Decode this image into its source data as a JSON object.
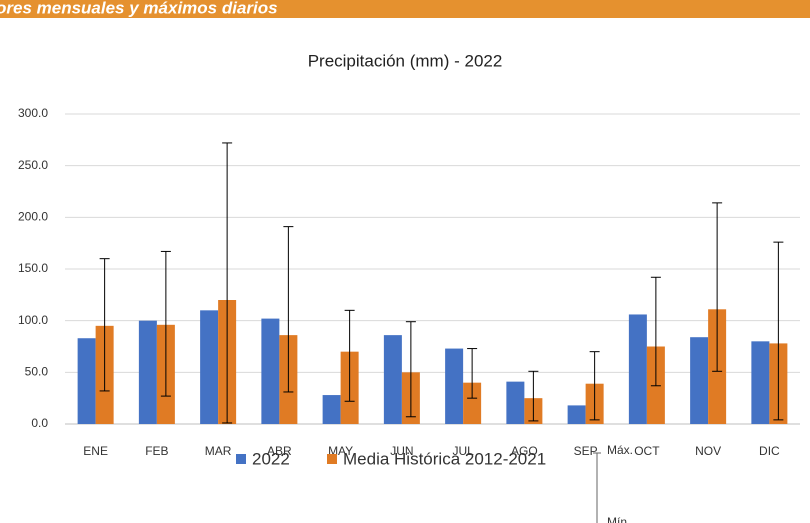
{
  "header": "ores mensuales y máximos diarios",
  "chart_data": {
    "type": "bar",
    "title": "Precipitación (mm) - 2022",
    "categories": [
      "ENE",
      "FEB",
      "MAR",
      "ABR",
      "MAY",
      "JUN",
      "JUL",
      "AGO",
      "SEP",
      "OCT",
      "NOV",
      "DIC"
    ],
    "series": [
      {
        "name": "2022",
        "color": "#4472c4",
        "values": [
          83,
          100,
          110,
          102,
          28,
          86,
          73,
          41,
          18,
          106,
          84,
          80
        ]
      },
      {
        "name": "Media Histórica 2012-2021",
        "color": "#e07b24",
        "values": [
          95,
          96,
          120,
          86,
          70,
          50,
          40,
          25,
          39,
          75,
          111,
          78
        ],
        "max": [
          160,
          167,
          272,
          191,
          110,
          99,
          73,
          51,
          70,
          142,
          214,
          176
        ],
        "min": [
          32,
          27,
          1,
          31,
          22,
          7,
          25,
          3,
          4,
          37,
          51,
          4
        ]
      }
    ],
    "error_legend": {
      "max": "Máx.",
      "min": "Mín."
    },
    "ylim": [
      0,
      300
    ],
    "yticks": [
      {
        "value": 0,
        "label": "0.0"
      },
      {
        "value": 50,
        "label": "50.0"
      },
      {
        "value": 100,
        "label": "100.0"
      },
      {
        "value": 150,
        "label": "150.0"
      },
      {
        "value": 200,
        "label": "200.0"
      },
      {
        "value": 250,
        "label": "250.0"
      },
      {
        "value": 300,
        "label": "300.0"
      }
    ],
    "grid": true
  }
}
